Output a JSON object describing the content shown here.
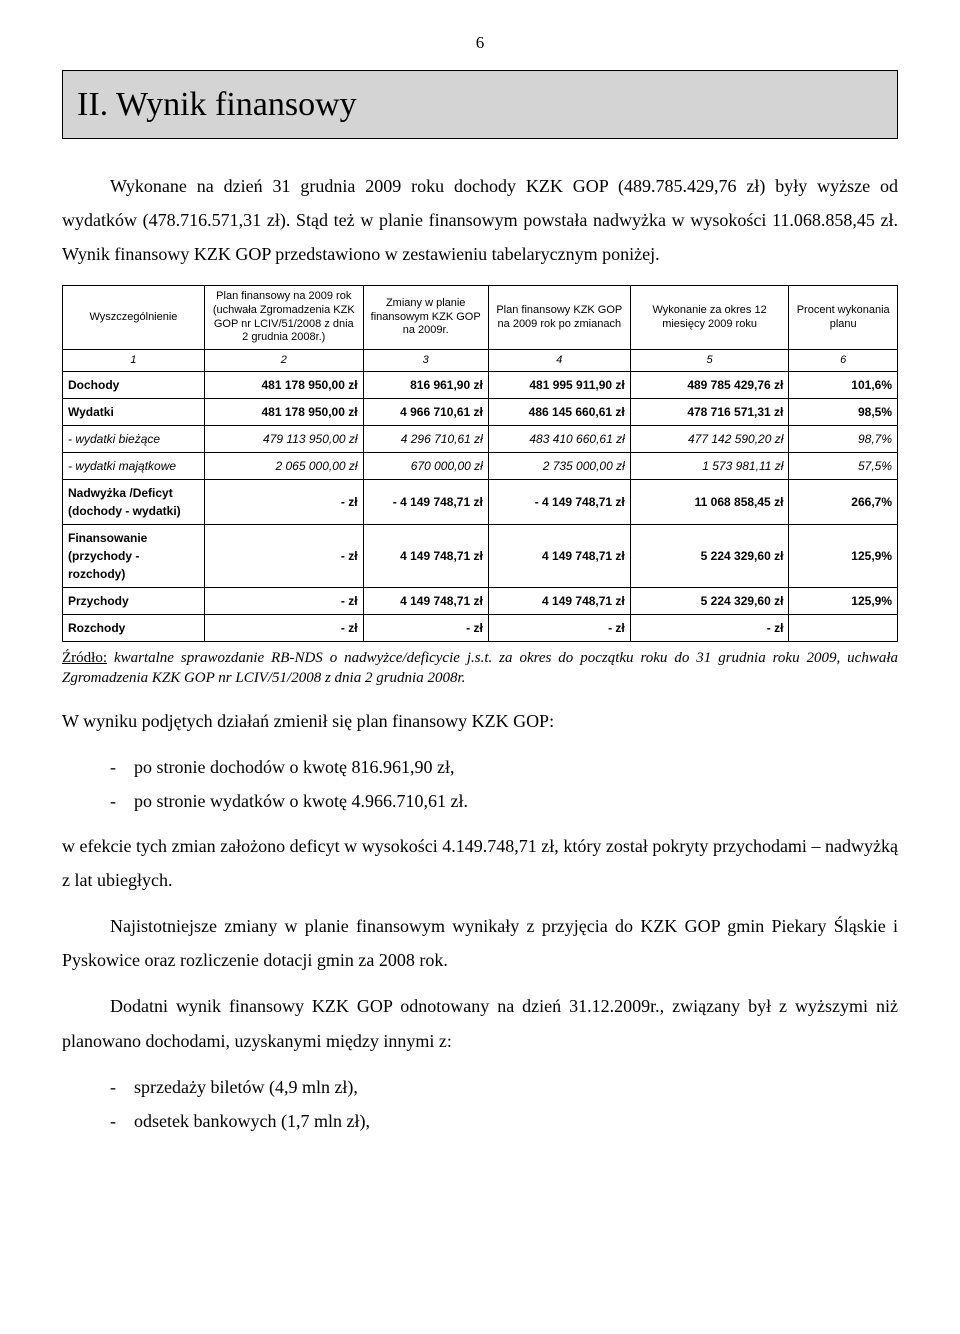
{
  "page_number": "6",
  "title": "II. Wynik finansowy",
  "para1": "Wykonane na dzień 31 grudnia 2009 roku dochody KZK GOP (489.785.429,76 zł) były wyższe od wydatków (478.716.571,31 zł). Stąd też w planie finansowym powstała nadwyżka w wysokości 11.068.858,45 zł. Wynik finansowy KZK GOP przedstawiono w zestawieniu tabelarycznym poniżej.",
  "table": {
    "headers": [
      "Wyszczególnienie",
      "Plan finansowy na 2009 rok (uchwała Zgromadzenia KZK GOP nr LCIV/51/2008 z dnia 2 grudnia 2008r.)",
      "Zmiany w planie finansowym KZK GOP na 2009r.",
      "Plan finansowy KZK GOP na 2009 rok po zmianach",
      "Wykonanie za okres 12 miesięcy 2009 roku",
      "Procent wykonania planu"
    ],
    "colnums": [
      "1",
      "2",
      "3",
      "4",
      "5",
      "6"
    ],
    "rows": [
      {
        "style": "bold",
        "cells": [
          "Dochody",
          "481 178 950,00 zł",
          "816 961,90 zł",
          "481 995 911,90 zł",
          "489 785 429,76 zł",
          "101,6%"
        ]
      },
      {
        "style": "bold",
        "cells": [
          "Wydatki",
          "481 178 950,00 zł",
          "4 966 710,61 zł",
          "486 145 660,61 zł",
          "478 716 571,31 zł",
          "98,5%"
        ]
      },
      {
        "style": "italic",
        "cells": [
          "- wydatki bieżące",
          "479 113 950,00 zł",
          "4 296 710,61 zł",
          "483 410 660,61 zł",
          "477 142 590,20 zł",
          "98,7%"
        ]
      },
      {
        "style": "italic",
        "cells": [
          "- wydatki majątkowe",
          "2 065 000,00 zł",
          "670 000,00 zł",
          "2 735 000,00 zł",
          "1 573 981,11 zł",
          "57,5%"
        ]
      },
      {
        "style": "bold",
        "cells": [
          "Nadwyżka /Deficyt (dochody - wydatki)",
          "-   zł",
          "- 4 149 748,71 zł",
          "-   4 149 748,71 zł",
          "11 068 858,45 zł",
          "266,7%"
        ]
      },
      {
        "style": "bold",
        "cells": [
          "Finansowanie (przychody - rozchody)",
          "-   zł",
          "4 149 748,71 zł",
          "4 149 748,71 zł",
          "5 224 329,60 zł",
          "125,9%"
        ]
      },
      {
        "style": "bold",
        "cells": [
          "Przychody",
          "-   zł",
          "4 149 748,71 zł",
          "4 149 748,71 zł",
          "5 224 329,60 zł",
          "125,9%"
        ]
      },
      {
        "style": "bold",
        "cells": [
          "Rozchody",
          "-   zł",
          "-   zł",
          "-   zł",
          "-   zł",
          ""
        ]
      }
    ]
  },
  "source_label": "Źródło:",
  "source_text": "kwartalne sprawozdanie RB-NDS o nadwyżce/deficycie j.s.t. za okres do początku roku do 31 grudnia roku 2009, uchwała Zgromadzenia KZK GOP nr LCIV/51/2008 z dnia 2 grudnia 2008r.",
  "para2": "W wyniku podjętych działań zmienił się plan finansowy KZK GOP:",
  "list1": [
    "po stronie dochodów o kwotę 816.961,90 zł,",
    "po stronie wydatków o kwotę 4.966.710,61 zł."
  ],
  "para3": "w efekcie tych zmian założono deficyt w wysokości 4.149.748,71 zł, który został pokryty przychodami – nadwyżką z lat ubiegłych.",
  "para4": "Najistotniejsze zmiany w planie finansowym wynikały z przyjęcia do KZK GOP gmin Piekary Śląskie i Pyskowice oraz rozliczenie dotacji gmin za 2008 rok.",
  "para5": "Dodatni wynik finansowy KZK GOP odnotowany na dzień 31.12.2009r., związany był z wyższymi niż planowano dochodami, uzyskanymi między innymi z:",
  "list2": [
    "sprzedaży biletów (4,9 mln zł),",
    "odsetek bankowych (1,7 mln zł),"
  ]
}
